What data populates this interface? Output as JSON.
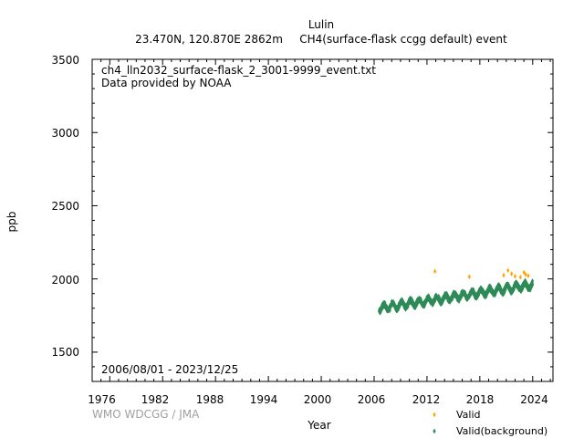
{
  "chart_data": {
    "type": "scatter",
    "title": "Lulin",
    "subtitle_location": "23.470N, 120.870E 2862m",
    "subtitle_parameter": "CH4(surface-flask ccgg default) event",
    "file_name": "ch4_lln2032_surface-flask_2_3001-9999_event.txt",
    "provider": "Data provided by NOAA",
    "date_range": "2006/08/01 - 2023/12/25",
    "xlabel": "Year",
    "ylabel": "ppb",
    "credit": "WMO WDCGG / JMA",
    "xlim": [
      1974,
      2026.3
    ],
    "ylim": [
      1300,
      3500
    ],
    "x_ticks": [
      "1976",
      "1982",
      "1988",
      "1994",
      "2000",
      "2006",
      "2012",
      "2018",
      "2024"
    ],
    "y_ticks": [
      "1500",
      "2000",
      "2500",
      "3000",
      "3500"
    ],
    "grid": false,
    "legend_position": "bottom-right",
    "series": [
      {
        "name": "Valid",
        "color": "#ffa500",
        "marker": "diamond",
        "points": [
          [
            2012.9,
            2052
          ],
          [
            2016.8,
            2015
          ],
          [
            2020.7,
            2025
          ],
          [
            2021.2,
            2058
          ],
          [
            2021.6,
            2035
          ],
          [
            2022.0,
            2018
          ],
          [
            2022.6,
            2012
          ],
          [
            2023.0,
            2045
          ],
          [
            2023.2,
            2030
          ],
          [
            2023.5,
            2022
          ]
        ]
      },
      {
        "name": "Valid(background)",
        "color": "#2e8b57",
        "marker": "diamond",
        "range": {
          "start_year": 2006.58,
          "end_year": 2023.98,
          "start_level": 1800,
          "end_level": 1960,
          "seasonal_amplitude": 22
        }
      }
    ]
  }
}
